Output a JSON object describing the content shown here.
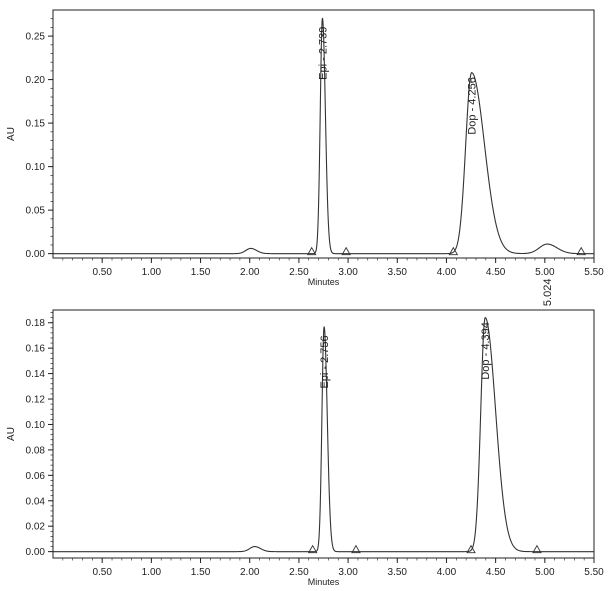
{
  "colors": {
    "trace": "#333333",
    "axis": "#222222",
    "text": "#222222",
    "background": "#ffffff"
  },
  "chart_data": [
    {
      "type": "line",
      "panel": "top",
      "xlabel": "Minutes",
      "ylabel": "AU",
      "xlim": [
        0.0,
        5.5
      ],
      "ylim": [
        -0.005,
        0.28
      ],
      "xticks": [
        "0.50",
        "1.00",
        "1.50",
        "2.00",
        "2.50",
        "3.00",
        "3.50",
        "4.00",
        "4.50",
        "5.00",
        "5.50"
      ],
      "yticks": [
        "0.00",
        "0.05",
        "0.10",
        "0.15",
        "0.20",
        "0.25"
      ],
      "grid": false,
      "baseline": 0.0,
      "peaks": [
        {
          "rt": 2.01,
          "height": 0.006,
          "sigma": 0.05,
          "tail": 0.01
        },
        {
          "rt": 2.739,
          "height": 0.271,
          "sigma": 0.022,
          "tail": 0.008
        },
        {
          "rt": 4.256,
          "height": 0.208,
          "sigma": 0.06,
          "tail": 0.07
        },
        {
          "rt": 5.024,
          "height": 0.011,
          "sigma": 0.08,
          "tail": 0.02
        }
      ],
      "peak_labels": [
        {
          "rt": 2.739,
          "y": 0.271,
          "text": "Epi - 2.739"
        },
        {
          "rt": 4.256,
          "y": 0.208,
          "text": "Dop - 4.256"
        },
        {
          "rt": 5.024,
          "y": 0.011,
          "text": "5.024"
        }
      ],
      "markers": [
        {
          "x": 2.63,
          "y": 0.0
        },
        {
          "x": 2.98,
          "y": 0.0
        },
        {
          "x": 4.07,
          "y": 0.0
        },
        {
          "x": 5.37,
          "y": 0.0
        }
      ]
    },
    {
      "type": "line",
      "panel": "bottom",
      "xlabel": "Minutes",
      "ylabel": "AU",
      "xlim": [
        0.0,
        5.5
      ],
      "ylim": [
        -0.005,
        0.19
      ],
      "xticks": [
        "0.50",
        "1.00",
        "1.50",
        "2.00",
        "2.50",
        "3.00",
        "3.50",
        "4.00",
        "4.50",
        "5.00",
        "5.50"
      ],
      "yticks": [
        "0.00",
        "0.02",
        "0.04",
        "0.06",
        "0.08",
        "0.10",
        "0.12",
        "0.14",
        "0.16",
        "0.18"
      ],
      "grid": false,
      "baseline": 0.0,
      "peaks": [
        {
          "rt": 2.05,
          "height": 0.004,
          "sigma": 0.05,
          "tail": 0.01
        },
        {
          "rt": 2.756,
          "height": 0.177,
          "sigma": 0.022,
          "tail": 0.01
        },
        {
          "rt": 4.394,
          "height": 0.184,
          "sigma": 0.045,
          "tail": 0.06
        }
      ],
      "peak_labels": [
        {
          "rt": 2.756,
          "y": 0.177,
          "text": "Epi - 2.756"
        },
        {
          "rt": 4.394,
          "y": 0.184,
          "text": "Dop - 4.394"
        }
      ],
      "markers": [
        {
          "x": 2.64,
          "y": 0.0
        },
        {
          "x": 3.08,
          "y": 0.0
        },
        {
          "x": 4.25,
          "y": 0.0
        },
        {
          "x": 4.92,
          "y": 0.0
        }
      ]
    }
  ]
}
